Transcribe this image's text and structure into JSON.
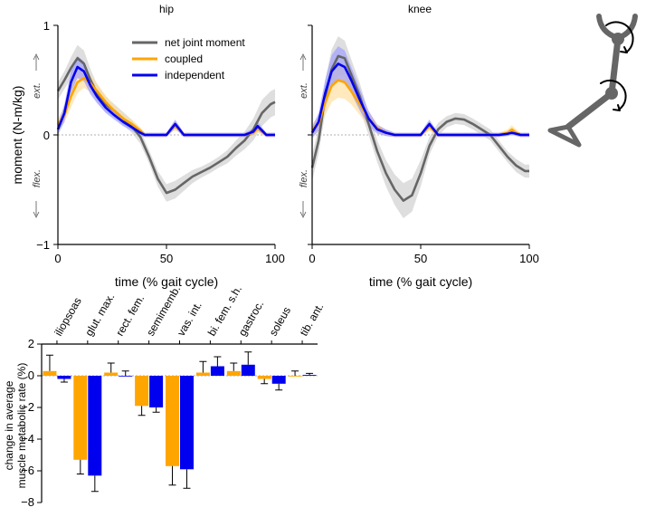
{
  "chart_data": [
    {
      "type": "line",
      "title": "hip",
      "xlabel": "time (% gait cycle)",
      "ylabel": "moment (N-m/kg)",
      "ext_label": "ext.",
      "flex_label": "flex.",
      "xlim": [
        0,
        100
      ],
      "ylim": [
        -1,
        1
      ],
      "xticks": [
        "0",
        "50",
        "100"
      ],
      "yticks": [
        "1",
        "0",
        "−1"
      ],
      "legend": [
        "net joint moment",
        "coupled",
        "independent"
      ],
      "legend_position": "top-right",
      "series": [
        {
          "name": "net joint moment",
          "color": "#666666",
          "band": "#cccccc",
          "x": [
            0,
            3,
            6,
            9,
            12,
            15,
            18,
            22,
            26,
            30,
            34,
            38,
            42,
            46,
            50,
            54,
            58,
            62,
            66,
            70,
            74,
            78,
            82,
            86,
            90,
            94,
            98,
            100
          ],
          "y": [
            0.4,
            0.5,
            0.61,
            0.7,
            0.65,
            0.5,
            0.38,
            0.28,
            0.22,
            0.15,
            0.08,
            -0.02,
            -0.2,
            -0.4,
            -0.53,
            -0.5,
            -0.44,
            -0.38,
            -0.34,
            -0.3,
            -0.25,
            -0.2,
            -0.12,
            -0.05,
            0.05,
            0.2,
            0.28,
            0.3
          ],
          "err": [
            0.08,
            0.08,
            0.1,
            0.12,
            0.12,
            0.1,
            0.08,
            0.07,
            0.06,
            0.06,
            0.06,
            0.06,
            0.06,
            0.07,
            0.08,
            0.08,
            0.07,
            0.06,
            0.05,
            0.05,
            0.05,
            0.06,
            0.07,
            0.08,
            0.1,
            0.12,
            0.12,
            0.12
          ]
        },
        {
          "name": "coupled",
          "color": "#FFA500",
          "band": "#FFDD99",
          "x": [
            0,
            3,
            6,
            9,
            12,
            15,
            18,
            22,
            26,
            30,
            34,
            38,
            40,
            45,
            50,
            52,
            54,
            56,
            58,
            65,
            80,
            86,
            90,
            92,
            94,
            96,
            100
          ],
          "y": [
            0.1,
            0.18,
            0.35,
            0.48,
            0.52,
            0.47,
            0.4,
            0.3,
            0.22,
            0.15,
            0.1,
            0.04,
            0.0,
            0.0,
            0.0,
            0.05,
            0.08,
            0.05,
            0.0,
            0.0,
            0.0,
            0.0,
            0.02,
            0.06,
            0.03,
            0.0,
            0.0
          ],
          "err": [
            0.05,
            0.07,
            0.1,
            0.1,
            0.09,
            0.08,
            0.07,
            0.06,
            0.05,
            0.04,
            0.04,
            0.03,
            0.02,
            0.02,
            0.02,
            0.03,
            0.04,
            0.03,
            0.02,
            0.02,
            0.02,
            0.02,
            0.03,
            0.04,
            0.03,
            0.02,
            0.02
          ]
        },
        {
          "name": "independent",
          "color": "#0000EE",
          "band": "#9999FF",
          "x": [
            0,
            3,
            6,
            9,
            12,
            15,
            18,
            22,
            26,
            30,
            34,
            38,
            40,
            45,
            50,
            52,
            54,
            56,
            58,
            65,
            80,
            86,
            90,
            92,
            94,
            96,
            100
          ],
          "y": [
            0.05,
            0.2,
            0.48,
            0.62,
            0.58,
            0.45,
            0.35,
            0.25,
            0.18,
            0.12,
            0.07,
            0.02,
            0.0,
            0.0,
            0.0,
            0.05,
            0.1,
            0.05,
            0.0,
            0.0,
            0.0,
            0.0,
            0.03,
            0.08,
            0.04,
            0.0,
            0.0
          ],
          "err": [
            0.05,
            0.08,
            0.1,
            0.1,
            0.09,
            0.08,
            0.06,
            0.05,
            0.04,
            0.04,
            0.03,
            0.03,
            0.02,
            0.02,
            0.02,
            0.03,
            0.04,
            0.03,
            0.02,
            0.02,
            0.02,
            0.02,
            0.03,
            0.04,
            0.03,
            0.02,
            0.02
          ]
        }
      ]
    },
    {
      "type": "line",
      "title": "knee",
      "xlabel": "time (% gait cycle)",
      "ext_label": "ext.",
      "flex_label": "flex.",
      "xlim": [
        0,
        100
      ],
      "ylim": [
        -1,
        1
      ],
      "xticks": [
        "0",
        "50",
        "100"
      ],
      "series": [
        {
          "name": "net joint moment",
          "color": "#666666",
          "band": "#cccccc",
          "x": [
            0,
            3,
            6,
            9,
            12,
            15,
            18,
            22,
            26,
            30,
            34,
            38,
            42,
            46,
            50,
            54,
            58,
            62,
            66,
            70,
            74,
            78,
            82,
            86,
            90,
            94,
            98,
            100
          ],
          "y": [
            -0.3,
            -0.05,
            0.35,
            0.6,
            0.72,
            0.7,
            0.55,
            0.35,
            0.1,
            -0.15,
            -0.35,
            -0.5,
            -0.6,
            -0.55,
            -0.35,
            -0.1,
            0.05,
            0.12,
            0.15,
            0.14,
            0.1,
            0.05,
            0.0,
            -0.1,
            -0.2,
            -0.28,
            -0.33,
            -0.33
          ],
          "err": [
            0.12,
            0.12,
            0.15,
            0.18,
            0.18,
            0.16,
            0.14,
            0.12,
            0.1,
            0.1,
            0.12,
            0.14,
            0.16,
            0.15,
            0.12,
            0.08,
            0.06,
            0.05,
            0.05,
            0.05,
            0.05,
            0.05,
            0.05,
            0.05,
            0.05,
            0.06,
            0.06,
            0.06
          ]
        },
        {
          "name": "coupled",
          "color": "#FFA500",
          "band": "#FFDD99",
          "x": [
            0,
            3,
            6,
            9,
            12,
            15,
            18,
            22,
            26,
            30,
            34,
            38,
            42,
            46,
            50,
            52,
            54,
            56,
            58,
            65,
            80,
            86,
            90,
            92,
            94,
            96,
            100
          ],
          "y": [
            0.05,
            0.1,
            0.3,
            0.45,
            0.5,
            0.48,
            0.4,
            0.28,
            0.15,
            0.06,
            0.02,
            0.0,
            0.0,
            0.0,
            0.0,
            0.04,
            0.08,
            0.04,
            0.0,
            0.0,
            0.0,
            0.0,
            0.02,
            0.05,
            0.02,
            0.0,
            0.0
          ],
          "err": [
            0.05,
            0.08,
            0.12,
            0.15,
            0.16,
            0.15,
            0.12,
            0.1,
            0.07,
            0.04,
            0.03,
            0.02,
            0.02,
            0.02,
            0.02,
            0.03,
            0.04,
            0.03,
            0.02,
            0.02,
            0.02,
            0.02,
            0.03,
            0.04,
            0.03,
            0.02,
            0.02
          ]
        },
        {
          "name": "independent",
          "color": "#0000EE",
          "band": "#9999FF",
          "x": [
            0,
            3,
            6,
            9,
            12,
            15,
            18,
            22,
            26,
            30,
            34,
            38,
            42,
            46,
            50,
            52,
            54,
            56,
            58,
            65,
            80,
            86,
            90,
            92,
            94,
            96,
            100
          ],
          "y": [
            0.02,
            0.12,
            0.38,
            0.58,
            0.65,
            0.62,
            0.5,
            0.32,
            0.15,
            0.05,
            0.02,
            0.0,
            0.0,
            0.0,
            0.0,
            0.05,
            0.1,
            0.05,
            0.0,
            0.0,
            0.0,
            0.0,
            0.01,
            0.02,
            0.01,
            0.0,
            0.0
          ],
          "err": [
            0.05,
            0.08,
            0.12,
            0.15,
            0.16,
            0.15,
            0.12,
            0.1,
            0.07,
            0.04,
            0.03,
            0.02,
            0.02,
            0.02,
            0.02,
            0.03,
            0.04,
            0.03,
            0.02,
            0.02,
            0.02,
            0.02,
            0.02,
            0.02,
            0.02,
            0.02,
            0.02
          ]
        }
      ]
    },
    {
      "type": "bar",
      "ylabel": "change in average muscle metabolic rate (%)",
      "ylabel_lines": [
        "change in average",
        "muscle metabolic rate (%)"
      ],
      "ylim": [
        -8,
        2
      ],
      "yticks": [
        "2",
        "0",
        "−2",
        "−4",
        "−6",
        "−8"
      ],
      "categories": [
        "iliopsoas",
        "glut. max.",
        "rect. fem.",
        "semimemb.",
        "vas. int.",
        "bi. fem. s.h.",
        "gastroc.",
        "soleus",
        "tib. ant."
      ],
      "series": [
        {
          "name": "coupled",
          "color": "#FFA500",
          "values": [
            0.3,
            -5.3,
            0.2,
            -1.9,
            -5.7,
            0.2,
            0.3,
            -0.2,
            0.0
          ],
          "err": [
            1.0,
            0.9,
            0.6,
            0.6,
            1.2,
            0.7,
            0.5,
            0.3,
            0.3
          ]
        },
        {
          "name": "independent",
          "color": "#0000EE",
          "values": [
            -0.2,
            -6.3,
            0.0,
            -2.0,
            -5.9,
            0.6,
            0.7,
            -0.5,
            0.05
          ],
          "err": [
            0.2,
            1.0,
            0.3,
            0.3,
            1.2,
            0.6,
            0.8,
            0.4,
            0.1
          ]
        }
      ]
    }
  ],
  "diagram": {
    "color": "#666666",
    "icon": "leg-exoskeleton-icon"
  }
}
